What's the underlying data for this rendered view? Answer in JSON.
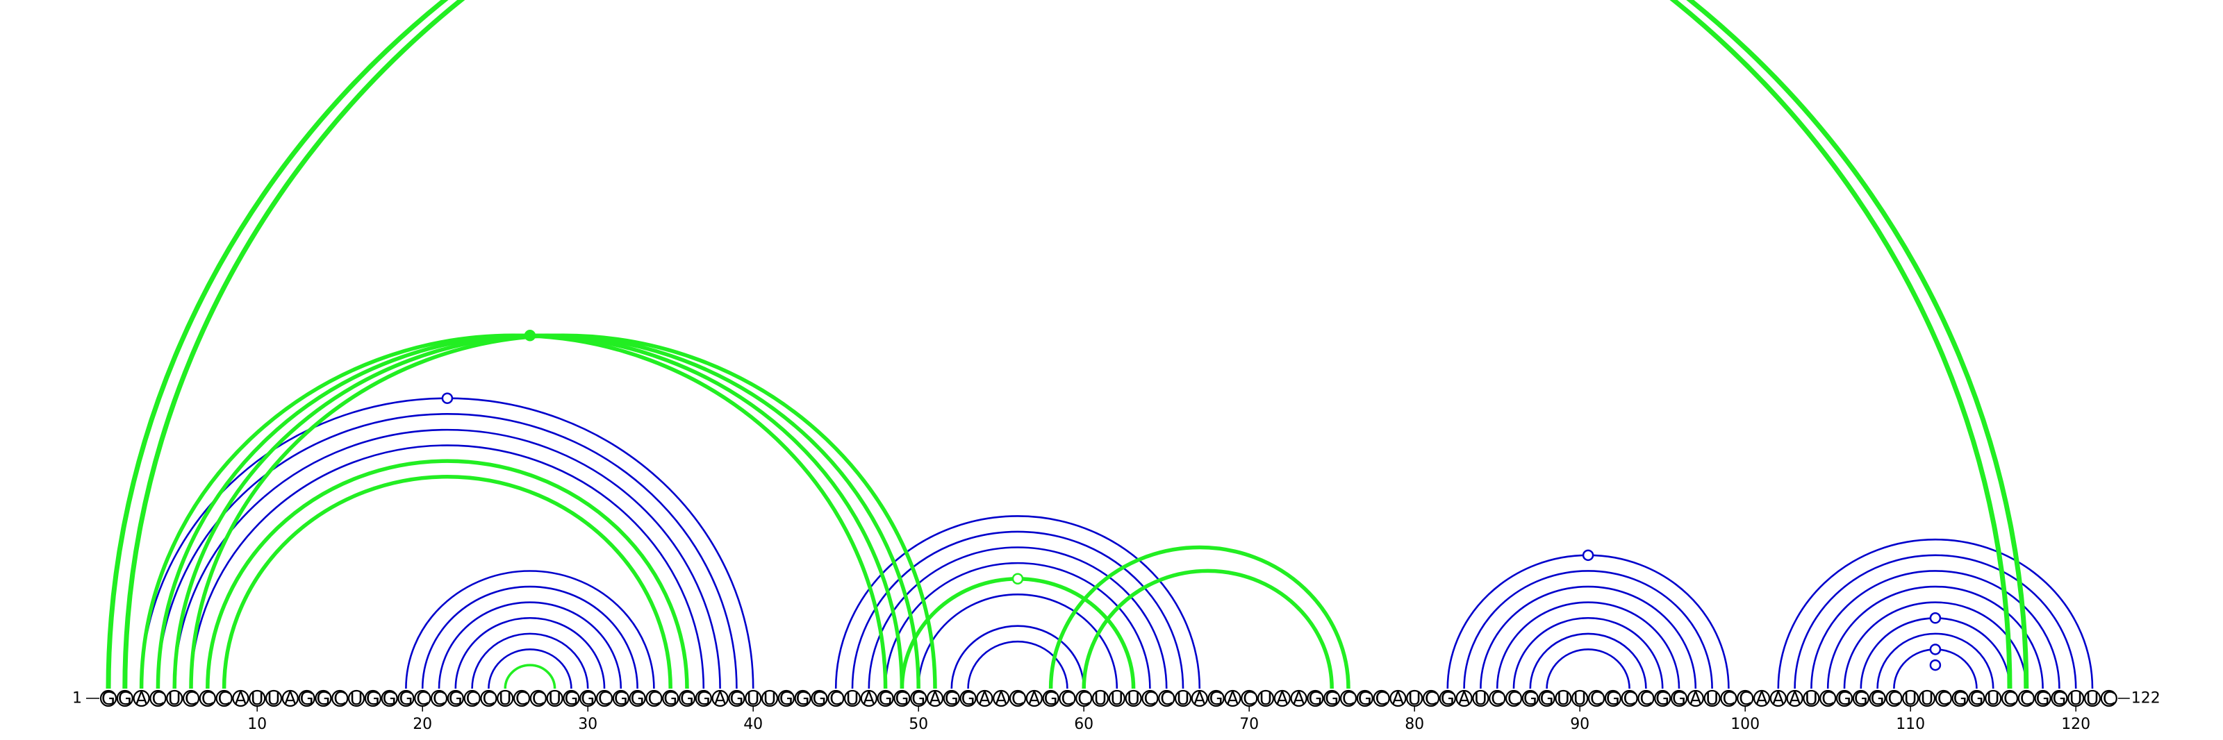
{
  "diagram": {
    "sequence": "GGACUCCCAUUAGGCUGGGCCGCCUCCUGGCGGCGGGAGUUGGGCUAGGGAGGAACAGCCUUUCCUAGACUAAGGCGCAUCGAUCCGGUUCGCCGGAUCCAAAUCGGGCUUCGGUCCGGUUC",
    "start_label": "1",
    "end_label": "122",
    "ticks": [
      10,
      20,
      30,
      40,
      50,
      60,
      70,
      80,
      90,
      100,
      110,
      120
    ],
    "colors": {
      "blue": "#0000cc",
      "green": "#22ee22",
      "nucleotide_stroke": "#000000"
    },
    "blue_pairs": [
      [
        3,
        40
      ],
      [
        4,
        39
      ],
      [
        5,
        38
      ],
      [
        6,
        37
      ],
      [
        7,
        36
      ],
      [
        19,
        34
      ],
      [
        20,
        33
      ],
      [
        21,
        32
      ],
      [
        22,
        31
      ],
      [
        23,
        30
      ],
      [
        24,
        29
      ],
      [
        25,
        28
      ],
      [
        45,
        67
      ],
      [
        46,
        66
      ],
      [
        47,
        65
      ],
      [
        48,
        64
      ],
      [
        49,
        63
      ],
      [
        50,
        62
      ],
      [
        52,
        60
      ],
      [
        53,
        59
      ],
      [
        82,
        99
      ],
      [
        83,
        98
      ],
      [
        84,
        97
      ],
      [
        85,
        96
      ],
      [
        86,
        95
      ],
      [
        87,
        94
      ],
      [
        88,
        93
      ],
      [
        102,
        121
      ],
      [
        103,
        120
      ],
      [
        104,
        119
      ],
      [
        105,
        118
      ],
      [
        106,
        117
      ],
      [
        107,
        116
      ],
      [
        108,
        115
      ],
      [
        109,
        114
      ]
    ],
    "green_pairs": [
      [
        1,
        116
      ],
      [
        2,
        117
      ],
      [
        3,
        48
      ],
      [
        4,
        49
      ],
      [
        5,
        50
      ],
      [
        6,
        51
      ],
      [
        7,
        36
      ],
      [
        8,
        35
      ],
      [
        49,
        63
      ],
      [
        58,
        76
      ],
      [
        60,
        75
      ],
      [
        25,
        28
      ]
    ],
    "markers": [
      {
        "position": 21.5,
        "arc": "blue",
        "style": "open"
      },
      {
        "position": 26.5,
        "arc": "green",
        "style": "filled"
      },
      {
        "position": 56,
        "arc": "green",
        "style": "open"
      },
      {
        "position": 90.5,
        "arc": "blue",
        "style": "open"
      },
      {
        "position": 111.5,
        "arc": "blue",
        "style": "open",
        "pair": [
          107,
          116
        ]
      },
      {
        "position": 111.5,
        "arc": "blue",
        "style": "open",
        "pair": [
          109,
          114
        ]
      },
      {
        "position": 111.5,
        "arc": "blue",
        "style": "open",
        "pair": [
          110,
          113
        ]
      }
    ]
  }
}
